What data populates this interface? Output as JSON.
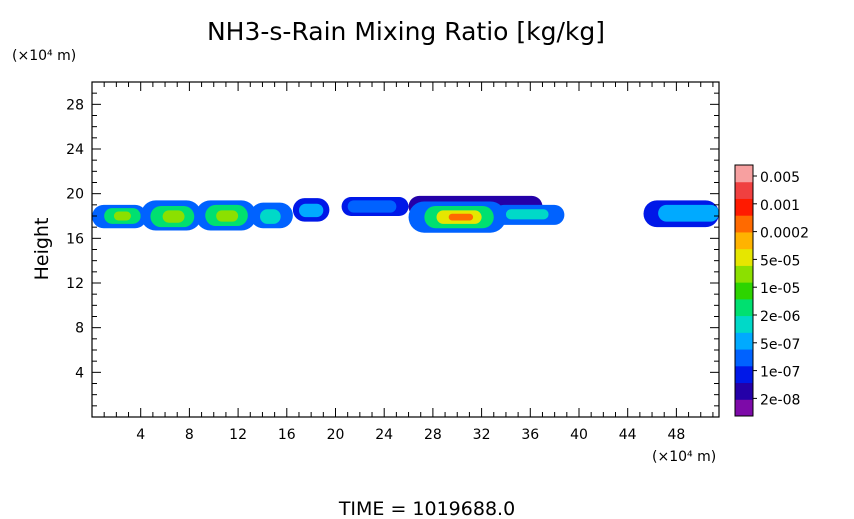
{
  "chart_data": {
    "type": "heatmap",
    "title": "NH3-s-Rain Mixing Ratio [kg/kg]",
    "ylabel": "Height",
    "y_unit": "(×10⁴ m)",
    "x_unit": "(×10⁴ m)",
    "footer": "TIME  =  1019688.0",
    "xlim": [
      0,
      51.5
    ],
    "ylim": [
      0,
      30
    ],
    "x_ticks": [
      4,
      8,
      12,
      16,
      20,
      24,
      28,
      32,
      36,
      40,
      44,
      48
    ],
    "y_ticks": [
      4,
      8,
      12,
      16,
      20,
      24,
      28
    ],
    "colorbar": {
      "labels": [
        "0.005",
        "0.001",
        "0.0002",
        "5e-05",
        "1e-05",
        "2e-06",
        "5e-07",
        "1e-07",
        "2e-08"
      ],
      "colors": [
        "#7d0aa8",
        "#2400a8",
        "#0018e8",
        "#0062ff",
        "#00aaff",
        "#00d9c8",
        "#00e070",
        "#2dd400",
        "#8ce000",
        "#e6e600",
        "#ffb300",
        "#ff6a00",
        "#ff1a00",
        "#f04040",
        "#f7a0a0"
      ]
    },
    "cells": [
      {
        "x0": 0,
        "x1": 4.5,
        "y0": 16.9,
        "y1": 19.0,
        "level": 3
      },
      {
        "x0": 1.0,
        "x1": 4.0,
        "y0": 17.3,
        "y1": 18.7,
        "level": 6
      },
      {
        "x0": 1.8,
        "x1": 3.2,
        "y0": 17.6,
        "y1": 18.4,
        "level": 8
      },
      {
        "x0": 4.0,
        "x1": 9.0,
        "y0": 16.7,
        "y1": 19.4,
        "level": 3
      },
      {
        "x0": 4.8,
        "x1": 8.4,
        "y0": 17.0,
        "y1": 18.9,
        "level": 6
      },
      {
        "x0": 5.8,
        "x1": 7.6,
        "y0": 17.4,
        "y1": 18.5,
        "level": 8
      },
      {
        "x0": 8.5,
        "x1": 13.5,
        "y0": 16.7,
        "y1": 19.4,
        "level": 3
      },
      {
        "x0": 9.3,
        "x1": 12.8,
        "y0": 17.1,
        "y1": 19.0,
        "level": 6
      },
      {
        "x0": 10.2,
        "x1": 12.0,
        "y0": 17.5,
        "y1": 18.5,
        "level": 8
      },
      {
        "x0": 13.0,
        "x1": 16.5,
        "y0": 16.9,
        "y1": 19.2,
        "level": 3
      },
      {
        "x0": 13.8,
        "x1": 15.5,
        "y0": 17.3,
        "y1": 18.6,
        "level": 5
      },
      {
        "x0": 16.5,
        "x1": 19.5,
        "y0": 17.5,
        "y1": 19.6,
        "level": 2
      },
      {
        "x0": 17.0,
        "x1": 19.0,
        "y0": 17.9,
        "y1": 19.1,
        "level": 4
      },
      {
        "x0": 20.5,
        "x1": 26.0,
        "y0": 18.0,
        "y1": 19.7,
        "level": 2
      },
      {
        "x0": 21.0,
        "x1": 25.0,
        "y0": 18.3,
        "y1": 19.4,
        "level": 3
      },
      {
        "x0": 26.0,
        "x1": 37.0,
        "y0": 17.9,
        "y1": 19.8,
        "level": 1
      },
      {
        "x0": 26.0,
        "x1": 34.0,
        "y0": 16.5,
        "y1": 19.3,
        "level": 3
      },
      {
        "x0": 27.3,
        "x1": 33.0,
        "y0": 16.9,
        "y1": 18.9,
        "level": 6
      },
      {
        "x0": 28.3,
        "x1": 32.0,
        "y0": 17.3,
        "y1": 18.5,
        "level": 9
      },
      {
        "x0": 29.3,
        "x1": 31.3,
        "y0": 17.6,
        "y1": 18.2,
        "level": 11
      },
      {
        "x0": 33.0,
        "x1": 38.8,
        "y0": 17.2,
        "y1": 19.0,
        "level": 3
      },
      {
        "x0": 34.0,
        "x1": 37.5,
        "y0": 17.7,
        "y1": 18.6,
        "level": 5
      },
      {
        "x0": 45.3,
        "x1": 51.5,
        "y0": 17.0,
        "y1": 19.4,
        "level": 2
      },
      {
        "x0": 46.5,
        "x1": 51.5,
        "y0": 17.5,
        "y1": 19.0,
        "level": 4
      }
    ]
  }
}
